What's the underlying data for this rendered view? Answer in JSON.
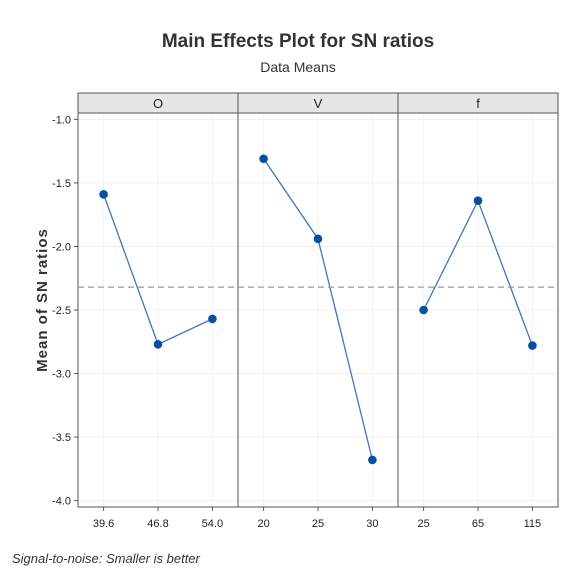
{
  "chart_data": {
    "type": "line",
    "title": "Main Effects Plot for SN ratios",
    "subtitle": "Data Means",
    "ylabel": "Mean of SN ratios",
    "footnote": "Signal-to-noise: Smaller is better",
    "ylim": [
      -4.05,
      -0.95
    ],
    "yticks": [
      -1.0,
      -1.5,
      -2.0,
      -2.5,
      -3.0,
      -3.5,
      -4.0
    ],
    "ytick_labels": [
      "-1.0",
      "-1.5",
      "-2.0",
      "-2.5",
      "-3.0",
      "-3.5",
      "-4.0"
    ],
    "reference_line": -2.32,
    "grid": true,
    "colors": {
      "line": "#3b78c0",
      "marker": "#0a4f9e",
      "reference": "#999999",
      "strip": "#e6e6e6"
    },
    "panels": [
      {
        "factor": "O",
        "x": [
          "39.6",
          "46.8",
          "54.0"
        ],
        "values": [
          -1.59,
          -2.77,
          -2.57
        ]
      },
      {
        "factor": "V",
        "x": [
          "20",
          "25",
          "30"
        ],
        "values": [
          -1.31,
          -1.94,
          -3.68
        ]
      },
      {
        "factor": "f",
        "x": [
          "25",
          "65",
          "115"
        ],
        "values": [
          -2.5,
          -1.64,
          -2.78
        ]
      }
    ]
  }
}
